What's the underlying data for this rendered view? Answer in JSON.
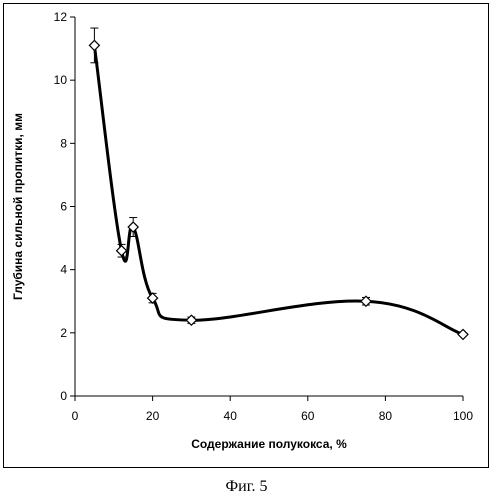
{
  "chart_data": {
    "type": "line",
    "title": "",
    "xlabel": "Содержание полукокса, %",
    "ylabel": "Глубина сильной пропитки, мм",
    "xlim": [
      0,
      100
    ],
    "ylim": [
      0,
      12
    ],
    "xticks": [
      0,
      20,
      40,
      60,
      80,
      100
    ],
    "yticks": [
      0,
      2,
      4,
      6,
      8,
      10,
      12
    ],
    "grid": false,
    "legend": "none",
    "line_color": "#000000",
    "marker": "diamond-open",
    "series": [
      {
        "points": [
          {
            "x": 5,
            "y": 11.1,
            "err": 0.55
          },
          {
            "x": 12,
            "y": 4.6,
            "err": 0.2
          },
          {
            "x": 15,
            "y": 5.35,
            "err": 0.3
          },
          {
            "x": 20,
            "y": 3.1,
            "err": 0.15
          },
          {
            "x": 30,
            "y": 2.4,
            "err": 0.1
          },
          {
            "x": 75,
            "y": 3.0,
            "err": 0.12
          },
          {
            "x": 100,
            "y": 1.95,
            "err": 0
          }
        ]
      }
    ]
  },
  "caption": "Фиг. 5"
}
